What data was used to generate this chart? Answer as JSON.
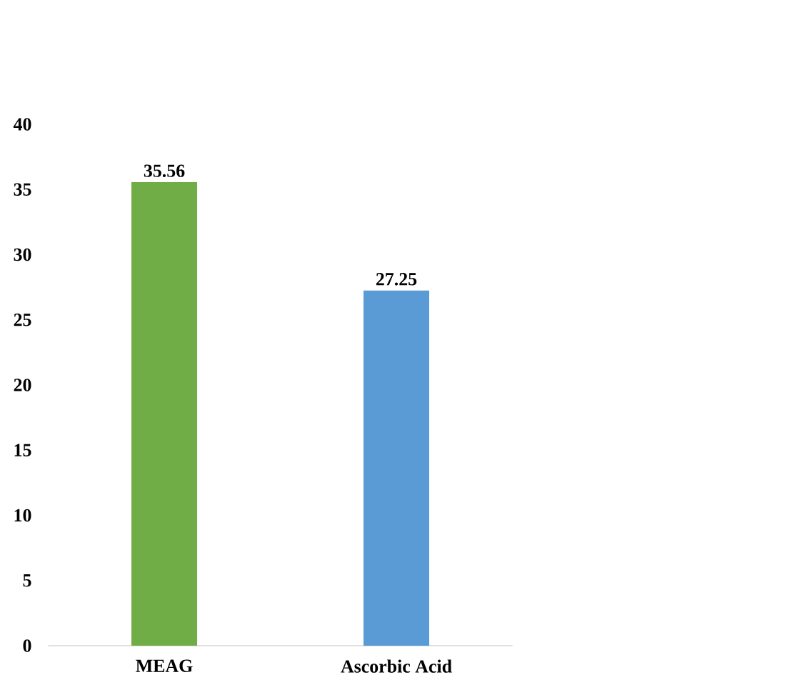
{
  "chart_data": {
    "type": "bar",
    "categories": [
      "MEAG",
      "Ascorbic Acid"
    ],
    "values": [
      35.56,
      27.25
    ],
    "colors": [
      "#70ad47",
      "#5b9bd5"
    ],
    "ylim": [
      0,
      40
    ],
    "yticks": [
      0,
      5,
      10,
      15,
      20,
      25,
      30,
      35,
      40
    ],
    "data_labels": true,
    "grid": false
  }
}
